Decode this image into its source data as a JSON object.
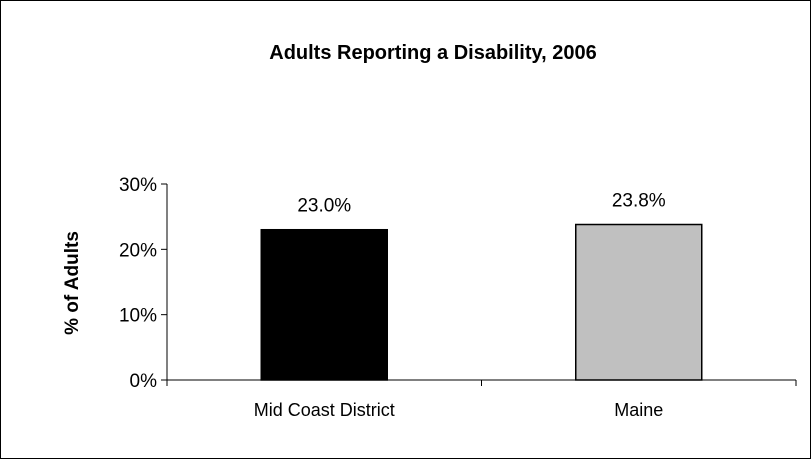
{
  "chart_data": {
    "type": "bar",
    "title": "Adults Reporting a Disability, 2006",
    "ylabel": "% of Adults",
    "xlabel": "",
    "categories": [
      "Mid Coast District",
      "Maine"
    ],
    "values": [
      23.0,
      23.8
    ],
    "data_labels": [
      "23.0%",
      "23.8%"
    ],
    "ylim": [
      0,
      30
    ],
    "yticks": [
      0,
      10,
      20,
      30
    ],
    "ytick_labels": [
      "0%",
      "10%",
      "20%",
      "30%"
    ],
    "bar_colors": [
      "#000000",
      "#c0c0c0"
    ],
    "grid": false,
    "legend": "none"
  }
}
